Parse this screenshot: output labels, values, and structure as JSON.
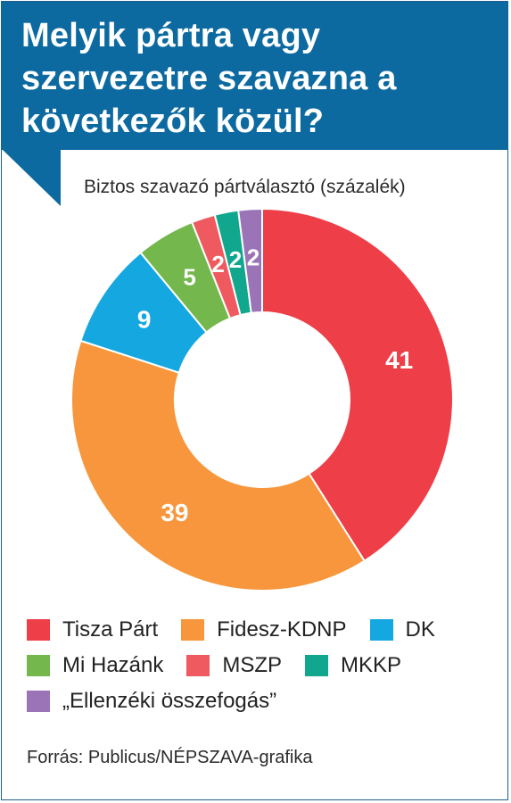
{
  "header": {
    "title": "Melyik pártra vagy szervezetre szavazna a következők közül?"
  },
  "chart_data": {
    "type": "pie",
    "subtitle": "Biztos szavazó pártválasztó (százalék)",
    "categories": [
      "Tisza Párt",
      "Fidesz-KDNP",
      "DK",
      "Mi Hazánk",
      "MSZP",
      "MKKP",
      "„Ellenzéki összefogás”"
    ],
    "values": [
      41,
      39,
      9,
      5,
      2,
      2,
      2
    ],
    "colors": [
      "#ee3e47",
      "#f7963c",
      "#15a7e0",
      "#74b74c",
      "#ee5a5f",
      "#11a68e",
      "#9b74b8"
    ],
    "donut": true,
    "legend_position": "bottom",
    "source": "Forrás: Publicus/NÉPSZAVA-grafika"
  },
  "colors": {
    "header_bg": "#0c6aa0",
    "header_text": "#ffffff"
  }
}
